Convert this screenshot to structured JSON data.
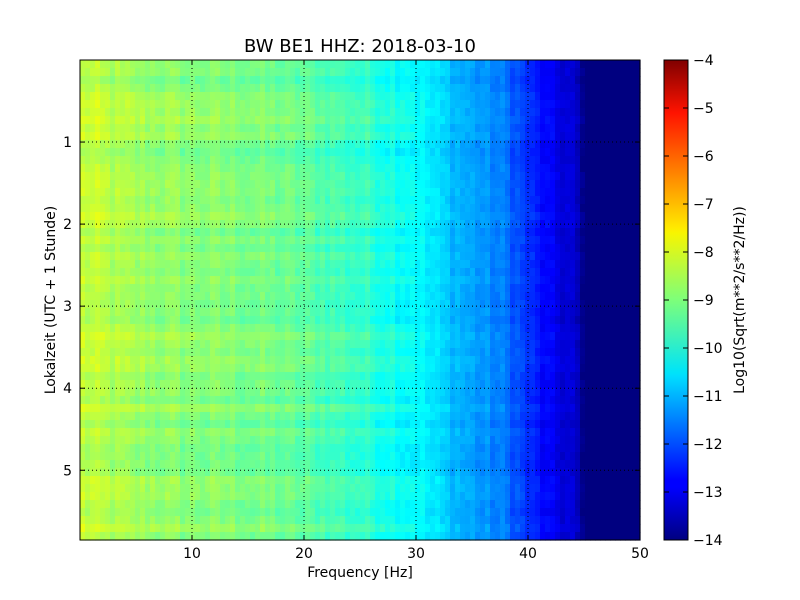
{
  "chart_data": {
    "type": "heatmap",
    "title": "BW BE1 HHZ: 2018-03-10",
    "xlabel": "Frequency [Hz]",
    "ylabel": "Lokalzeit (UTC + 1 Stunde)",
    "xlim": [
      0,
      50
    ],
    "ylim": [
      5.85,
      0
    ],
    "xticks": [
      10,
      20,
      30,
      40,
      50
    ],
    "yticks": [
      1,
      2,
      3,
      4,
      5
    ],
    "grid": true,
    "colormap": "jet",
    "colorbar": {
      "label": "Log10(Sqrt(m**2/s**2/Hz))",
      "range": [
        -14,
        -4
      ],
      "ticks": [
        -14,
        -13,
        -12,
        -11,
        -10,
        -9,
        -8,
        -7,
        -6,
        -5,
        -4
      ]
    },
    "frequency_profile": {
      "freq_hz": [
        0,
        5,
        10,
        15,
        20,
        25,
        30,
        32,
        34,
        38,
        40,
        42,
        44,
        45,
        50
      ],
      "log_amplitude": [
        -8.3,
        -8.7,
        -8.9,
        -9.0,
        -9.3,
        -9.7,
        -10.2,
        -10.6,
        -11.0,
        -11.6,
        -12.3,
        -12.9,
        -13.2,
        -14.0,
        -14.0
      ]
    }
  }
}
